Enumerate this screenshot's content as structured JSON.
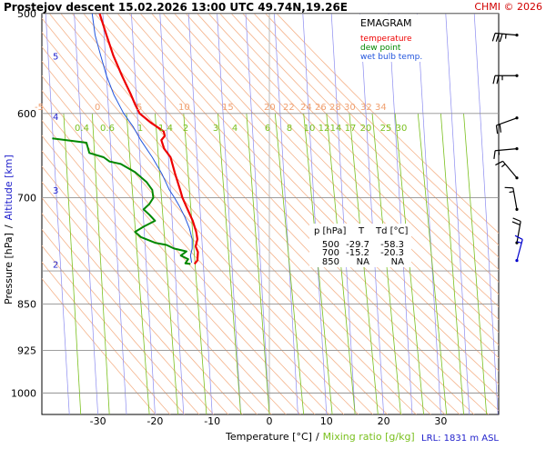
{
  "header": {
    "title": "Prostejov  descent  15.02.2026 13:00 UTC  49.74N,19.26E",
    "copyright": "CHMI © 2026"
  },
  "legend": {
    "title": "EMAGRAM",
    "entries": [
      {
        "label": "temperature",
        "color": "#ee0000"
      },
      {
        "label": "dew point",
        "color": "#008800"
      },
      {
        "label": "wet bulb temp.",
        "color": "#2255dd"
      }
    ]
  },
  "table": {
    "headers": [
      "p [hPa]",
      "T",
      "Td [°C]"
    ],
    "rows": [
      [
        "500",
        "-29.7",
        "-58.3"
      ],
      [
        "700",
        "-15.2",
        "-20.3"
      ],
      [
        "850",
        "NA",
        "NA"
      ]
    ]
  },
  "footer": {
    "lrl": "LRL: 1831 m ASL"
  },
  "colors": {
    "temperature": "#ee0000",
    "dewpoint": "#008800",
    "wetbulb": "#2255dd",
    "isotherm": "#8c8cf0",
    "isobar": "#909090",
    "adiabat": "#f5b48c",
    "mixing": "#7ac01e",
    "wind": "#000000",
    "wind_blue": "#0000cc"
  },
  "chart_data": {
    "type": "emagram",
    "title": "Prostejov  descent  15.02.2026 13:00 UTC  49.74N,19.26E",
    "xlabel_temperature": "Temperature [°C]",
    "xlabel_separator": "/",
    "xlabel_mixing": "Mixing ratio [g/kg]",
    "ylabel_pressure": "Pressure [hPa]",
    "ylabel_separator": "/",
    "ylabel_altitude": "Altitude [km]",
    "xlim": [
      -43,
      40
    ],
    "plim": [
      500,
      1040
    ],
    "x_ticks": [
      -30,
      -20,
      -10,
      0,
      10,
      20,
      30
    ],
    "pressure_ticks": [
      500,
      600,
      700,
      850,
      925,
      1000
    ],
    "extra_isobars": [
      800
    ],
    "altitude_ticks": [
      {
        "label": "5",
        "p": 540
      },
      {
        "label": "4",
        "p": 603
      },
      {
        "label": "3",
        "p": 690
      },
      {
        "label": "2",
        "p": 790
      }
    ],
    "theta_labels": [
      "-5",
      "0",
      "5",
      "10",
      "15",
      "20",
      "22",
      "24",
      "26",
      "28",
      "30",
      "32",
      "34"
    ],
    "mixing_labels": [
      "0.4",
      "0.6",
      "1",
      "1.4",
      "2",
      "3",
      "4",
      "6",
      "8",
      "10",
      "12",
      "14",
      "17",
      "20",
      "25",
      "30"
    ],
    "series": [
      {
        "name": "temperature",
        "points": [
          [
            -29.7,
            500
          ],
          [
            -28.5,
            520
          ],
          [
            -27.3,
            540
          ],
          [
            -25.8,
            560
          ],
          [
            -24.2,
            580
          ],
          [
            -23.5,
            590
          ],
          [
            -22.7,
            600
          ],
          [
            -20.8,
            610
          ],
          [
            -18.5,
            620
          ],
          [
            -18.3,
            625
          ],
          [
            -18.9,
            630
          ],
          [
            -18.4,
            640
          ],
          [
            -17.3,
            650
          ],
          [
            -16.5,
            670
          ],
          [
            -15.6,
            690
          ],
          [
            -15.2,
            700
          ],
          [
            -14.3,
            715
          ],
          [
            -13.4,
            730
          ],
          [
            -12.8,
            745
          ],
          [
            -12.6,
            755
          ],
          [
            -12.9,
            765
          ],
          [
            -12.5,
            773
          ],
          [
            -12.6,
            785
          ],
          [
            -13.1,
            790
          ]
        ]
      },
      {
        "name": "dew point",
        "points": [
          [
            -38,
            628
          ],
          [
            -32,
            633
          ],
          [
            -31.5,
            645
          ],
          [
            -29,
            650
          ],
          [
            -28,
            655
          ],
          [
            -26,
            658
          ],
          [
            -23.5,
            668
          ],
          [
            -21.5,
            680
          ],
          [
            -20.5,
            690
          ],
          [
            -20.3,
            700
          ],
          [
            -21,
            708
          ],
          [
            -22,
            715
          ],
          [
            -21,
            722
          ],
          [
            -20,
            730
          ],
          [
            -22,
            738
          ],
          [
            -23.5,
            745
          ],
          [
            -22.5,
            752
          ],
          [
            -20,
            760
          ],
          [
            -18,
            763
          ],
          [
            -16.7,
            768
          ],
          [
            -14.5,
            772
          ],
          [
            -15.5,
            778
          ],
          [
            -14.2,
            783
          ],
          [
            -14.7,
            789
          ],
          [
            -13.8,
            790
          ]
        ]
      },
      {
        "name": "wet bulb temp.",
        "points": [
          [
            -31,
            500
          ],
          [
            -30.5,
            520
          ],
          [
            -29.5,
            540
          ],
          [
            -28.5,
            560
          ],
          [
            -27.2,
            580
          ],
          [
            -25.5,
            600
          ],
          [
            -23.8,
            615
          ],
          [
            -22.5,
            630
          ],
          [
            -20.5,
            650
          ],
          [
            -18.8,
            670
          ],
          [
            -17.5,
            690
          ],
          [
            -16.6,
            700
          ],
          [
            -15.8,
            710
          ],
          [
            -14.8,
            725
          ],
          [
            -14,
            740
          ],
          [
            -13.5,
            755
          ],
          [
            -13.5,
            768
          ],
          [
            -13.8,
            778
          ],
          [
            -13.6,
            788
          ]
        ]
      }
    ],
    "wind_barbs": [
      {
        "p": 520,
        "direction_deg": 275,
        "speed_kt": 35
      },
      {
        "p": 560,
        "direction_deg": 270,
        "speed_kt": 25
      },
      {
        "p": 605,
        "direction_deg": 250,
        "speed_kt": 20
      },
      {
        "p": 640,
        "direction_deg": 265,
        "speed_kt": 15
      },
      {
        "p": 675,
        "direction_deg": 320,
        "speed_kt": 15
      },
      {
        "p": 715,
        "direction_deg": 350,
        "speed_kt": 15
      },
      {
        "p": 760,
        "direction_deg": 10,
        "speed_kt": 20
      },
      {
        "p": 785,
        "direction_deg": 15,
        "speed_kt": 15
      }
    ]
  }
}
